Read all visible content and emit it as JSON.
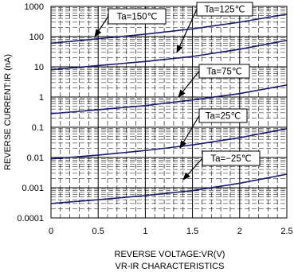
{
  "chart_data": {
    "type": "line",
    "title": "VR-IR CHARACTERISTICS",
    "xlabel": "REVERSE VOLTAGE:VR(V)",
    "ylabel": "REVERSE CURRENT:IR (nA)",
    "xlim": [
      0,
      2.5
    ],
    "ylim": [
      0.0001,
      1000
    ],
    "yscale": "log",
    "grid": true,
    "x_ticks": [
      "0",
      "0.5",
      "1",
      "1.5",
      "2",
      "2.5"
    ],
    "y_ticks": [
      "0.0001",
      "0.001",
      "0.01",
      "0.1",
      "1",
      "10",
      "100",
      "1000"
    ],
    "series": [
      {
        "name": "Ta=150℃",
        "color": "#1a1a6e",
        "x": [
          0,
          0.5,
          1,
          1.5,
          2,
          2.5
        ],
        "y": [
          60,
          85,
          120,
          180,
          300,
          550
        ]
      },
      {
        "name": "Ta=125℃",
        "color": "#1a1a6e",
        "x": [
          0,
          0.5,
          1,
          1.5,
          2,
          2.5
        ],
        "y": [
          8,
          11,
          15,
          22,
          38,
          75
        ]
      },
      {
        "name": "Ta=75℃",
        "color": "#1a1a6e",
        "x": [
          0,
          0.5,
          1,
          1.5,
          2,
          2.5
        ],
        "y": [
          0.28,
          0.38,
          0.52,
          0.8,
          1.3,
          2.5
        ]
      },
      {
        "name": "Ta=25℃",
        "color": "#1a1a6e",
        "x": [
          0,
          0.5,
          1,
          1.5,
          2,
          2.5
        ],
        "y": [
          0.009,
          0.012,
          0.017,
          0.026,
          0.045,
          0.09
        ]
      },
      {
        "name": "Ta=−25℃",
        "color": "#1a1a6e",
        "x": [
          0,
          0.5,
          1,
          1.5,
          2,
          2.5
        ],
        "y": [
          0.0003,
          0.0004,
          0.00055,
          0.0008,
          0.0014,
          0.0028
        ]
      }
    ],
    "annotations": [
      {
        "text": "Ta=150℃"
      },
      {
        "text": "Ta=125℃"
      },
      {
        "text": "Ta=75℃"
      },
      {
        "text": "Ta=25℃"
      },
      {
        "text": "Ta=−25℃"
      }
    ]
  }
}
